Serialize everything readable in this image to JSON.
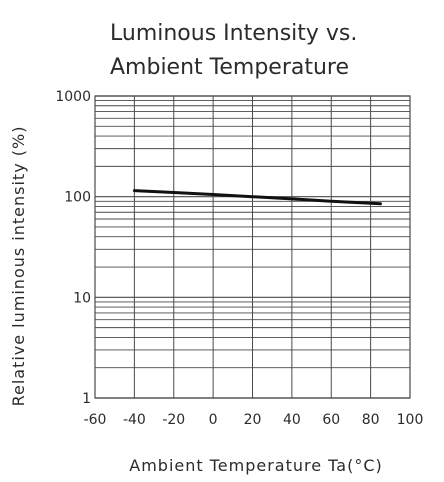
{
  "chart_data": {
    "type": "line",
    "title_lines": [
      "Luminous Intensity vs.",
      "Ambient Temperature"
    ],
    "xlabel": "Ambient Temperature Ta(°C)",
    "ylabel": "Relative luminous intensity (%)",
    "x_ticks": [
      -60,
      -40,
      -20,
      0,
      20,
      40,
      60,
      80,
      100
    ],
    "x_tick_labels": [
      "-60",
      "-40",
      "-20",
      "0",
      "20",
      "40",
      "60",
      "80",
      "100"
    ],
    "y_ticks": [
      1,
      10,
      100,
      1000
    ],
    "y_tick_labels": [
      "1",
      "10",
      "100",
      "1000"
    ],
    "xlim": [
      -60,
      100
    ],
    "ylim": [
      1,
      1000
    ],
    "y_scale": "log",
    "grid": true,
    "series": [
      {
        "x": [
          -40,
          -20,
          0,
          20,
          40,
          60,
          85
        ],
        "y": [
          115,
          110,
          105,
          100,
          95,
          90,
          85
        ]
      }
    ],
    "colors": {
      "grid": "#4a4a4a",
      "line": "#111111",
      "text": "#2b2b2b"
    }
  }
}
